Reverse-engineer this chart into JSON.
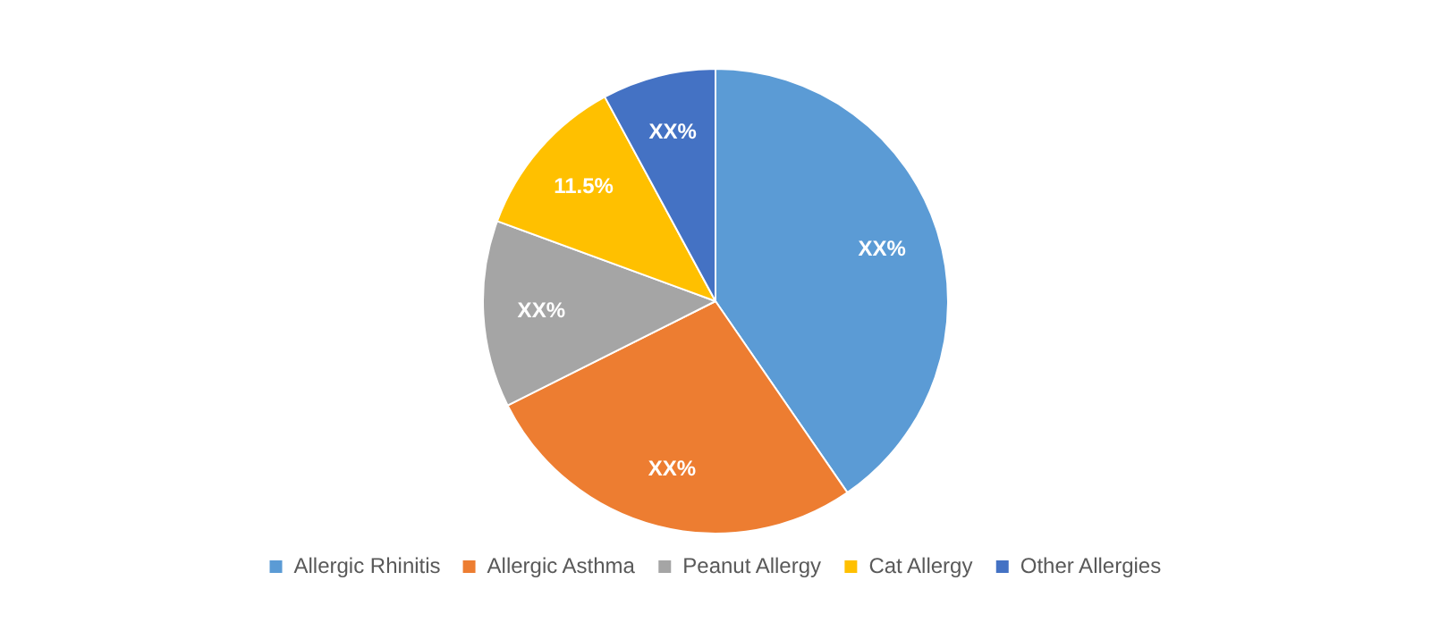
{
  "chart_data": {
    "type": "pie",
    "categories": [
      "Allergic Rhinitis",
      "Allergic Asthma",
      "Peanut Allergy",
      "Cat Allergy",
      "Other Allergies"
    ],
    "values": [
      40.4,
      27.2,
      13,
      11.5,
      7.9
    ],
    "value_labels": [
      "XX%",
      "XX%",
      "XX%",
      "11.5%",
      "XX%"
    ],
    "colors": [
      "#5b9bd5",
      "#ed7d31",
      "#a5a5a5",
      "#ffc000",
      "#4472c4"
    ],
    "legend": "bottom"
  }
}
